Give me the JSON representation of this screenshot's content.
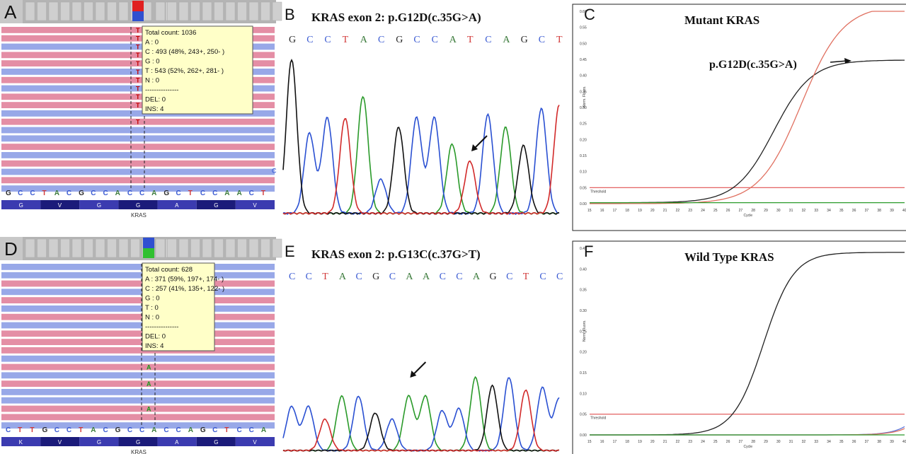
{
  "colors": {
    "A": "#2aa02a",
    "C": "#2a50d2",
    "G": "#c89400",
    "T": "#d22a2a",
    "read_fwd": "#e48ea5",
    "read_rev": "#98a8e8",
    "tooltip_bg": "#ffffc8",
    "seq_A": "#3a7a3a",
    "seq_C": "#3a5ad2",
    "seq_G": "#2a2a2a",
    "seq_T": "#d23a3a"
  },
  "panels": [
    {
      "label": "A",
      "tooltip": [
        "Total count: 1036",
        "A : 0",
        "C : 493 (48%, 243+, 250- )",
        "G : 0",
        "T : 543 (52%, 262+, 281- )",
        "N : 0",
        "---------------",
        "DEL: 0",
        "INS: 4"
      ],
      "ref_seq": [
        "G",
        "C",
        "C",
        "T",
        "A",
        "C",
        "G",
        "C",
        "C",
        "A",
        "C",
        "C",
        "A",
        "G",
        "C",
        "T",
        "C",
        "C",
        "A",
        "A",
        "C",
        "T"
      ],
      "aa_seq": [
        "G",
        "V",
        "G",
        "G",
        "A",
        "G",
        "V"
      ],
      "gene": "KRAS",
      "mutant_base": "T",
      "edge_base": "C"
    },
    {
      "label": "D",
      "tooltip": [
        "Total count: 628",
        "A : 371 (59%, 197+, 174- )",
        "C : 257 (41%, 135+, 122- )",
        "G : 0",
        "T : 0",
        "N : 0",
        "---------------",
        "DEL: 0",
        "INS: 4"
      ],
      "ref_seq": [
        "C",
        "T",
        "T",
        "G",
        "C",
        "C",
        "T",
        "A",
        "C",
        "G",
        "C",
        "C",
        "A",
        "C",
        "C",
        "A",
        "G",
        "C",
        "T",
        "C",
        "C",
        "A"
      ],
      "aa_seq": [
        "K",
        "V",
        "G",
        "G",
        "A",
        "G",
        "V"
      ],
      "gene": "KRAS",
      "mutant_base": "A"
    }
  ],
  "chromatograms": [
    {
      "label": "B",
      "title": "KRAS exon 2: p.G12D(c.35G>A)",
      "seq": [
        "G",
        "C",
        "C",
        "T",
        "A",
        "C",
        "G",
        "C",
        "C",
        "A",
        "T",
        "C",
        "A",
        "G",
        "C",
        "T"
      ]
    },
    {
      "label": "E",
      "title": "KRAS exon 2: p.G13C(c.37G>T)",
      "seq": [
        "C",
        "C",
        "T",
        "A",
        "C",
        "G",
        "C",
        "A",
        "A",
        "C",
        "C",
        "A",
        "G",
        "C",
        "T",
        "C",
        "C"
      ]
    }
  ],
  "chart_data": [
    {
      "type": "line",
      "label": "C",
      "title": "Mutant KRAS",
      "annotation": "p.G12D(c.35G>A)",
      "threshold_label": "Threshold",
      "xlabel": "Cycle",
      "ylabel": "Norm. Fluoro.",
      "xlim": [
        15,
        40
      ],
      "ylim": [
        0,
        0.6
      ],
      "x_ticks": [
        15,
        16,
        17,
        18,
        19,
        20,
        21,
        22,
        23,
        24,
        25,
        26,
        27,
        28,
        29,
        30,
        31,
        32,
        33,
        34,
        35,
        36,
        37,
        38,
        39,
        40
      ],
      "y_ticks": [
        0,
        0.05,
        0.1,
        0.15,
        0.2,
        0.25,
        0.3,
        0.35,
        0.4,
        0.45,
        0.5,
        0.55,
        0.6
      ],
      "threshold": 0.05,
      "series": [
        {
          "color": "#222222",
          "plateau": 0.445,
          "midpoint": 29.6,
          "slope": 1.5,
          "base": 0.003
        },
        {
          "color": "#e07060",
          "plateau": 0.62,
          "midpoint": 31.8,
          "slope": 1.65,
          "base": 0.0
        },
        {
          "color": "#2a9a2a",
          "plateau": 0.0,
          "midpoint": 30,
          "slope": 1,
          "base": 0.003
        }
      ]
    },
    {
      "type": "line",
      "label": "F",
      "title": "Wild Type KRAS",
      "threshold_label": "Threshold",
      "xlabel": "Cycle",
      "ylabel": "Norm. Fluoro.",
      "xlim": [
        15,
        40
      ],
      "ylim": [
        0,
        0.45
      ],
      "x_ticks": [
        15,
        16,
        17,
        18,
        19,
        20,
        21,
        22,
        23,
        24,
        25,
        26,
        27,
        28,
        29,
        30,
        31,
        32,
        33,
        34,
        35,
        36,
        37,
        38,
        39,
        40
      ],
      "y_ticks": [
        0,
        0.05,
        0.1,
        0.15,
        0.2,
        0.25,
        0.3,
        0.35,
        0.4,
        0.45
      ],
      "threshold": 0.05,
      "series": [
        {
          "color": "#222222",
          "plateau": 0.44,
          "midpoint": 28.8,
          "slope": 1.2,
          "base": 0.0
        },
        {
          "color": "#5b74d8",
          "plateau": 0.5,
          "midpoint": 43.5,
          "slope": 1.1,
          "base": 0.0
        },
        {
          "color": "#e07060",
          "plateau": 0.5,
          "midpoint": 43.8,
          "slope": 1.1,
          "base": 0.0
        },
        {
          "color": "#2a9a2a",
          "plateau": 0.0,
          "midpoint": 30,
          "slope": 1,
          "base": 0.0
        }
      ]
    }
  ]
}
